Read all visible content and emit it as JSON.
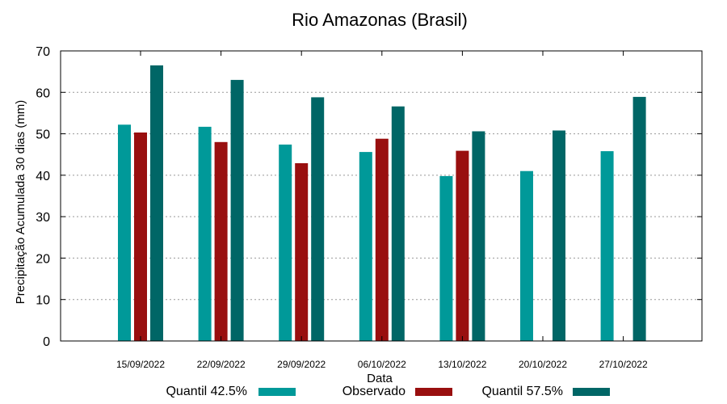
{
  "chart_data": {
    "type": "bar",
    "title": "Rio Amazonas (Brasil)",
    "xlabel": "Data",
    "ylabel": "Precipitação Acumulada 30 dias (mm)",
    "ylim": [
      0,
      70
    ],
    "yticks": [
      0,
      10,
      20,
      30,
      40,
      50,
      60,
      70
    ],
    "grid": true,
    "legend_position": "bottom",
    "categories": [
      "15/09/2022",
      "22/09/2022",
      "29/09/2022",
      "06/10/2022",
      "13/10/2022",
      "20/10/2022",
      "27/10/2022"
    ],
    "series": [
      {
        "name": "Quantil 42.5%",
        "color": "#009999",
        "values": [
          52.2,
          51.7,
          47.4,
          45.6,
          39.8,
          41.0,
          45.8
        ]
      },
      {
        "name": "Observado",
        "color": "#990f0f",
        "values": [
          50.3,
          48.0,
          42.9,
          48.8,
          45.9,
          null,
          null
        ]
      },
      {
        "name": "Quantil 57.5%",
        "color": "#006666",
        "values": [
          66.5,
          63.0,
          58.8,
          56.6,
          50.6,
          50.8,
          58.9
        ]
      }
    ]
  }
}
